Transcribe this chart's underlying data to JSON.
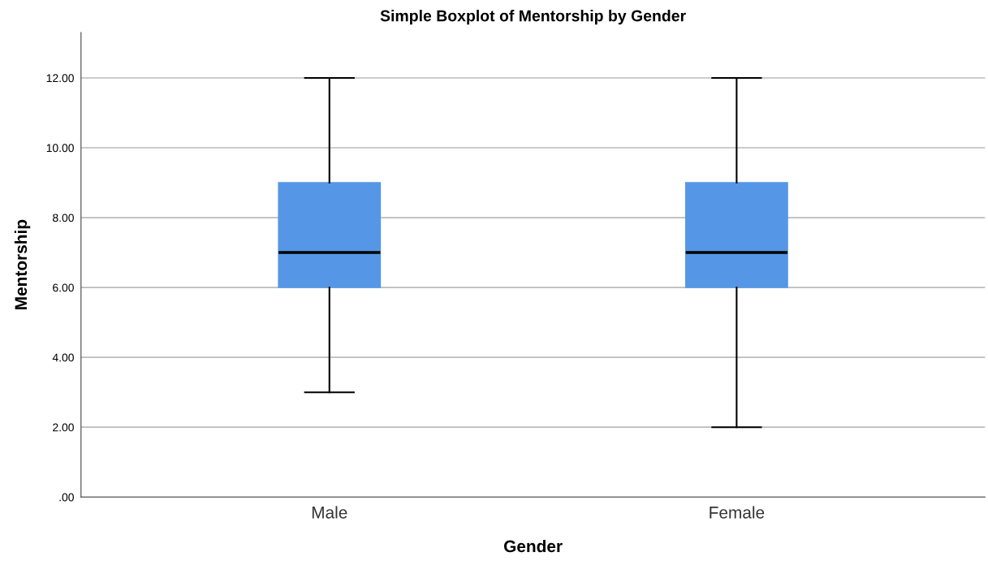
{
  "chart_data": {
    "type": "box",
    "title": "Simple Boxplot of Mentorship by Gender",
    "xlabel": "Gender",
    "ylabel": "Mentorship",
    "categories": [
      "Male",
      "Female"
    ],
    "boxes": [
      {
        "low": 3,
        "q1": 6,
        "median": 7,
        "q3": 9,
        "high": 12
      },
      {
        "low": 2,
        "q1": 6,
        "median": 7,
        "q3": 9,
        "high": 12
      }
    ],
    "color": "#5597e6",
    "ylim": [
      0,
      13.3
    ],
    "yticks": [
      {
        "value": 0,
        "label": ".00"
      },
      {
        "value": 2,
        "label": "2.00"
      },
      {
        "value": 4,
        "label": "4.00"
      },
      {
        "value": 6,
        "label": "6.00"
      },
      {
        "value": 8,
        "label": "8.00"
      },
      {
        "value": 10,
        "label": "10.00"
      },
      {
        "value": 12,
        "label": "12.00"
      }
    ],
    "grid": "y"
  }
}
